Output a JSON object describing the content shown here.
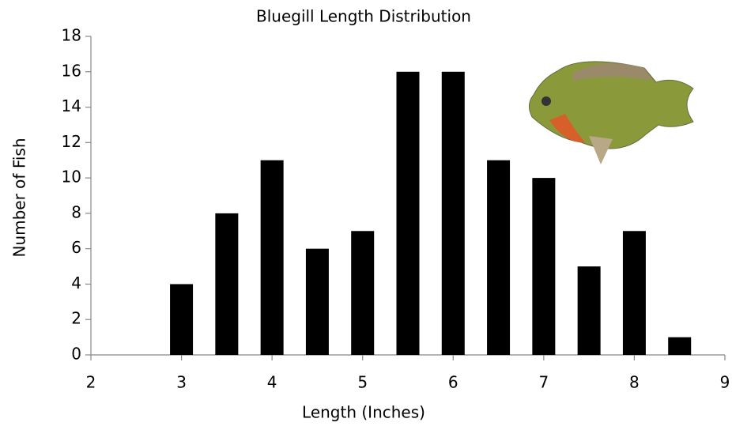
{
  "chart_data": {
    "type": "bar",
    "title": "Bluegill Length Distribution",
    "x_label": "Length (Inches)",
    "y_label": "Number of Fish",
    "x": [
      3,
      3.5,
      4,
      4.5,
      5,
      5.5,
      6,
      6.5,
      7,
      7.5,
      8,
      8.5
    ],
    "values": [
      4,
      8,
      11,
      6,
      7,
      16,
      16,
      11,
      10,
      5,
      7,
      1
    ],
    "color": "#000000",
    "xlim": [
      2,
      9
    ],
    "xticks": [
      2,
      3,
      4,
      5,
      6,
      7,
      8,
      9
    ],
    "ylim": [
      0,
      18
    ],
    "yticks": [
      0,
      2,
      4,
      6,
      8,
      10,
      12,
      14,
      16,
      18
    ],
    "grid": false
  }
}
